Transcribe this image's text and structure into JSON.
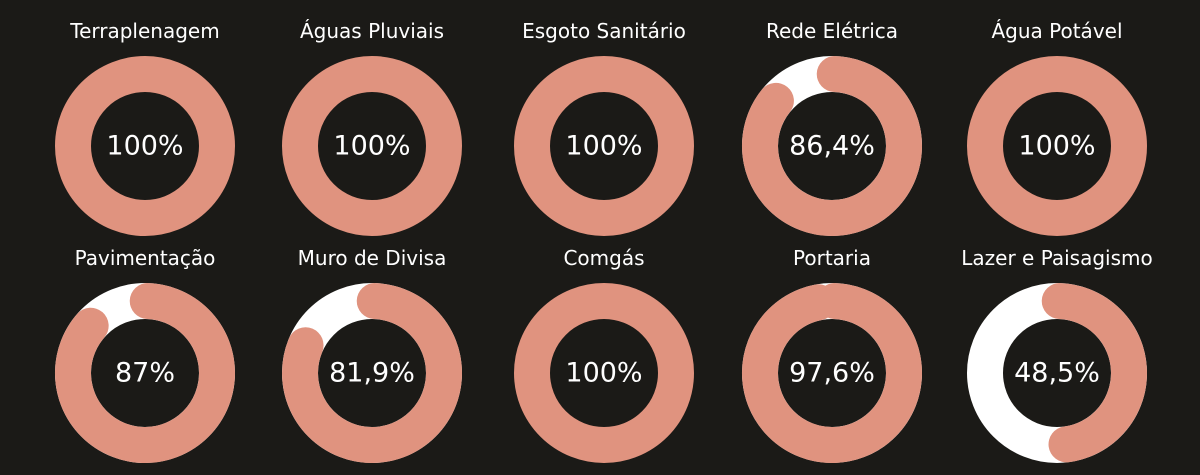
{
  "colors": {
    "background": "#1b1a17",
    "progress": "#e0937f",
    "remaining": "#ffffff",
    "text": "#ffffff"
  },
  "chart_data": [
    {
      "type": "pie",
      "title": "Terraplenagem",
      "value": 100,
      "label": "100%"
    },
    {
      "type": "pie",
      "title": "Águas Pluviais",
      "value": 100,
      "label": "100%"
    },
    {
      "type": "pie",
      "title": "Esgoto Sanitário",
      "value": 100,
      "label": "100%"
    },
    {
      "type": "pie",
      "title": "Rede Elétrica",
      "value": 86.4,
      "label": "86,4%"
    },
    {
      "type": "pie",
      "title": "Água Potável",
      "value": 100,
      "label": "100%"
    },
    {
      "type": "pie",
      "title": "Pavimentação",
      "value": 87,
      "label": "87%"
    },
    {
      "type": "pie",
      "title": "Muro de Divisa",
      "value": 81.9,
      "label": "81,9%"
    },
    {
      "type": "pie",
      "title": "Comgás",
      "value": 100,
      "label": "100%"
    },
    {
      "type": "pie",
      "title": "Portaria",
      "value": 97.6,
      "label": "97,6%"
    },
    {
      "type": "pie",
      "title": "Lazer e Paisagismo",
      "value": 48.5,
      "label": "48,5%"
    }
  ]
}
